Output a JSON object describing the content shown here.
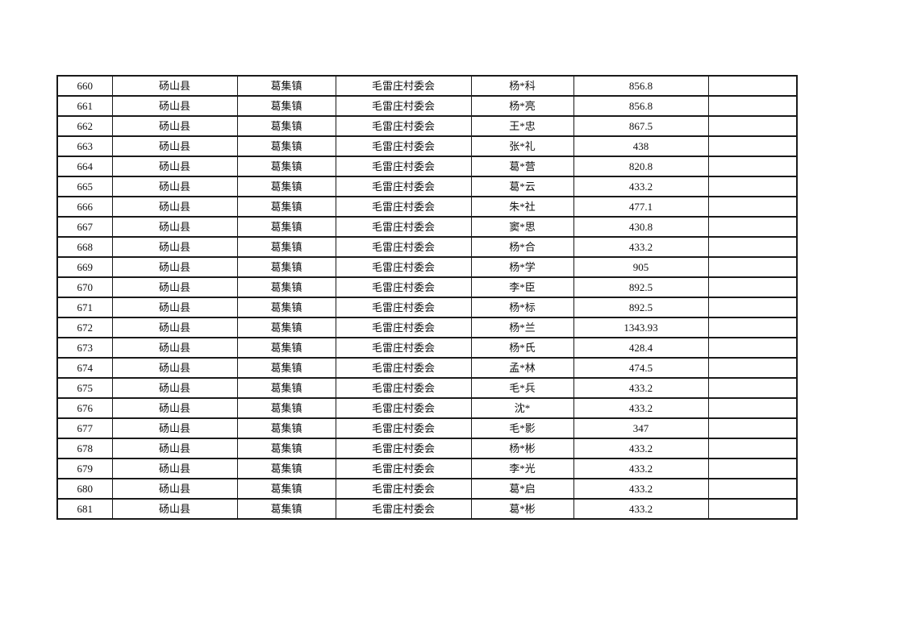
{
  "page": {
    "background_color": "#ffffff",
    "border_color": "#1a1a1a",
    "text_color": "#111111"
  },
  "table": {
    "column_keys": [
      "serial",
      "county",
      "town",
      "village",
      "name",
      "amount",
      "note"
    ],
    "rows": [
      {
        "serial": "660",
        "county": "砀山县",
        "town": "葛集镇",
        "village": "毛雷庄村委会",
        "name": "杨*科",
        "amount": "856.8",
        "note": ""
      },
      {
        "serial": "661",
        "county": "砀山县",
        "town": "葛集镇",
        "village": "毛雷庄村委会",
        "name": "杨*亮",
        "amount": "856.8",
        "note": ""
      },
      {
        "serial": "662",
        "county": "砀山县",
        "town": "葛集镇",
        "village": "毛雷庄村委会",
        "name": "王*忠",
        "amount": "867.5",
        "note": ""
      },
      {
        "serial": "663",
        "county": "砀山县",
        "town": "葛集镇",
        "village": "毛雷庄村委会",
        "name": "张*礼",
        "amount": "438",
        "note": ""
      },
      {
        "serial": "664",
        "county": "砀山县",
        "town": "葛集镇",
        "village": "毛雷庄村委会",
        "name": "葛*营",
        "amount": "820.8",
        "note": ""
      },
      {
        "serial": "665",
        "county": "砀山县",
        "town": "葛集镇",
        "village": "毛雷庄村委会",
        "name": "葛*云",
        "amount": "433.2",
        "note": ""
      },
      {
        "serial": "666",
        "county": "砀山县",
        "town": "葛集镇",
        "village": "毛雷庄村委会",
        "name": "朱*社",
        "amount": "477.1",
        "note": ""
      },
      {
        "serial": "667",
        "county": "砀山县",
        "town": "葛集镇",
        "village": "毛雷庄村委会",
        "name": "窦*思",
        "amount": "430.8",
        "note": ""
      },
      {
        "serial": "668",
        "county": "砀山县",
        "town": "葛集镇",
        "village": "毛雷庄村委会",
        "name": "杨*合",
        "amount": "433.2",
        "note": ""
      },
      {
        "serial": "669",
        "county": "砀山县",
        "town": "葛集镇",
        "village": "毛雷庄村委会",
        "name": "杨*学",
        "amount": "905",
        "note": ""
      },
      {
        "serial": "670",
        "county": "砀山县",
        "town": "葛集镇",
        "village": "毛雷庄村委会",
        "name": "李*臣",
        "amount": "892.5",
        "note": ""
      },
      {
        "serial": "671",
        "county": "砀山县",
        "town": "葛集镇",
        "village": "毛雷庄村委会",
        "name": "杨*标",
        "amount": "892.5",
        "note": ""
      },
      {
        "serial": "672",
        "county": "砀山县",
        "town": "葛集镇",
        "village": "毛雷庄村委会",
        "name": "杨*兰",
        "amount": "1343.93",
        "note": ""
      },
      {
        "serial": "673",
        "county": "砀山县",
        "town": "葛集镇",
        "village": "毛雷庄村委会",
        "name": "杨*氏",
        "amount": "428.4",
        "note": ""
      },
      {
        "serial": "674",
        "county": "砀山县",
        "town": "葛集镇",
        "village": "毛雷庄村委会",
        "name": "孟*林",
        "amount": "474.5",
        "note": ""
      },
      {
        "serial": "675",
        "county": "砀山县",
        "town": "葛集镇",
        "village": "毛雷庄村委会",
        "name": "毛*兵",
        "amount": "433.2",
        "note": ""
      },
      {
        "serial": "676",
        "county": "砀山县",
        "town": "葛集镇",
        "village": "毛雷庄村委会",
        "name": "沈*",
        "amount": "433.2",
        "note": ""
      },
      {
        "serial": "677",
        "county": "砀山县",
        "town": "葛集镇",
        "village": "毛雷庄村委会",
        "name": "毛*影",
        "amount": "347",
        "note": ""
      },
      {
        "serial": "678",
        "county": "砀山县",
        "town": "葛集镇",
        "village": "毛雷庄村委会",
        "name": "杨*彬",
        "amount": "433.2",
        "note": ""
      },
      {
        "serial": "679",
        "county": "砀山县",
        "town": "葛集镇",
        "village": "毛雷庄村委会",
        "name": "李*光",
        "amount": "433.2",
        "note": ""
      },
      {
        "serial": "680",
        "county": "砀山县",
        "town": "葛集镇",
        "village": "毛雷庄村委会",
        "name": "葛*启",
        "amount": "433.2",
        "note": ""
      },
      {
        "serial": "681",
        "county": "砀山县",
        "town": "葛集镇",
        "village": "毛雷庄村委会",
        "name": "葛*彬",
        "amount": "433.2",
        "note": ""
      }
    ]
  }
}
